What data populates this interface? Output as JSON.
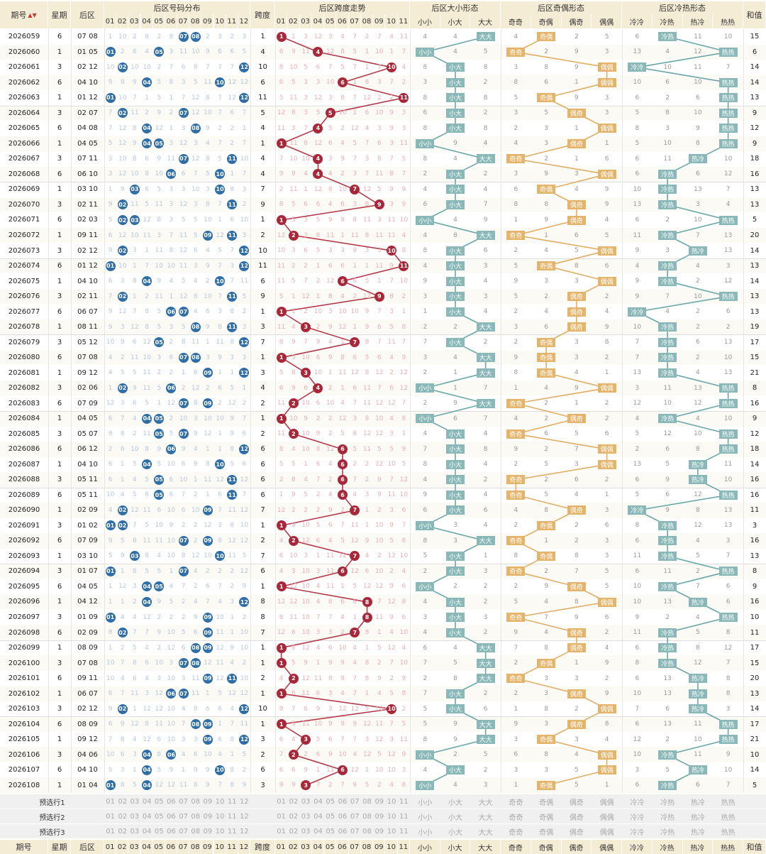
{
  "header": {
    "issue": "期号",
    "week": "星期",
    "back": "后区",
    "dist_group": "后区号码分布",
    "kd": "跨度",
    "kd_group": "后区跨度走势",
    "size_group": "后区大小形态",
    "size_cols": [
      "小小",
      "小大",
      "大大"
    ],
    "parity_group": "后区奇偶形态",
    "parity_cols": [
      "奇奇",
      "奇偶",
      "偶奇",
      "偶偶"
    ],
    "hot_group": "后区冷热形态",
    "hot_cols": [
      "冷冷",
      "冷热",
      "热冷",
      "热热"
    ],
    "sum": "和值"
  },
  "numbers12": [
    "01",
    "02",
    "03",
    "04",
    "05",
    "06",
    "07",
    "08",
    "09",
    "10",
    "11",
    "12"
  ],
  "kd_cols": [
    "0",
    "1",
    "2",
    "3",
    "4",
    "5",
    "6",
    "7",
    "8",
    "9",
    "10",
    "11"
  ],
  "rows": [
    {
      "issue": "2026059",
      "week": "6",
      "back": "07 08",
      "kd": "1",
      "sum": "15",
      "size": "大大",
      "parity": "奇偶",
      "hot": "冷热"
    },
    {
      "issue": "2026060",
      "week": "1",
      "back": "01 05",
      "kd": "4",
      "sum": "6",
      "size": "小小",
      "parity": "奇奇",
      "hot": "热热"
    },
    {
      "issue": "2026061",
      "week": "3",
      "back": "02 12",
      "kd": "10",
      "sum": "14",
      "size": "小大",
      "parity": "偶偶",
      "hot": "冷冷"
    },
    {
      "issue": "2026062",
      "week": "6",
      "back": "04 10",
      "kd": "6",
      "sum": "14",
      "size": "小大",
      "parity": "偶偶",
      "hot": "热热"
    },
    {
      "issue": "2026063",
      "week": "1",
      "back": "01 12",
      "kd": "11",
      "sum": "13",
      "size": "小大",
      "parity": "奇偶",
      "hot": "热热"
    },
    {
      "issue": "2026064",
      "week": "3",
      "back": "02 07",
      "kd": "5",
      "sum": "9",
      "size": "小大",
      "parity": "偶奇",
      "hot": "热热"
    },
    {
      "issue": "2026065",
      "week": "6",
      "back": "04 08",
      "kd": "4",
      "sum": "12",
      "size": "小大",
      "parity": "偶偶",
      "hot": "热热"
    },
    {
      "issue": "2026066",
      "week": "1",
      "back": "04 05",
      "kd": "1",
      "sum": "9",
      "size": "小小",
      "parity": "偶奇",
      "hot": "热热"
    },
    {
      "issue": "2026067",
      "week": "3",
      "back": "07 11",
      "kd": "4",
      "sum": "18",
      "size": "大大",
      "parity": "奇奇",
      "hot": "热冷"
    },
    {
      "issue": "2026068",
      "week": "6",
      "back": "06 10",
      "kd": "4",
      "sum": "16",
      "size": "小大",
      "parity": "偶偶",
      "hot": "冷热"
    },
    {
      "issue": "2026069",
      "week": "1",
      "back": "03 10",
      "kd": "7",
      "sum": "13",
      "size": "小大",
      "parity": "奇偶",
      "hot": "冷热"
    },
    {
      "issue": "2026070",
      "week": "3",
      "back": "02 11",
      "kd": "9",
      "sum": "13",
      "size": "小大",
      "parity": "偶奇",
      "hot": "冷热"
    },
    {
      "issue": "2026071",
      "week": "6",
      "back": "02 03",
      "kd": "1",
      "sum": "5",
      "size": "小小",
      "parity": "偶奇",
      "hot": "热热"
    },
    {
      "issue": "2026072",
      "week": "1",
      "back": "09 11",
      "kd": "2",
      "sum": "20",
      "size": "大大",
      "parity": "奇奇",
      "hot": "冷热"
    },
    {
      "issue": "2026073",
      "week": "3",
      "back": "02 12",
      "kd": "10",
      "sum": "14",
      "size": "小大",
      "parity": "偶偶",
      "hot": "热冷"
    },
    {
      "issue": "2026074",
      "week": "6",
      "back": "01 12",
      "kd": "11",
      "sum": "13",
      "size": "小大",
      "parity": "奇偶",
      "hot": "冷热"
    },
    {
      "issue": "2026075",
      "week": "1",
      "back": "04 10",
      "kd": "6",
      "sum": "14",
      "size": "小大",
      "parity": "偶偶",
      "hot": "冷热"
    },
    {
      "issue": "2026076",
      "week": "3",
      "back": "02 11",
      "kd": "9",
      "sum": "13",
      "size": "小大",
      "parity": "偶奇",
      "hot": "热热"
    },
    {
      "issue": "2026077",
      "week": "6",
      "back": "06 07",
      "kd": "1",
      "sum": "13",
      "size": "小大",
      "parity": "偶奇",
      "hot": "冷冷"
    },
    {
      "issue": "2026078",
      "week": "1",
      "back": "08 11",
      "kd": "3",
      "sum": "19",
      "size": "大大",
      "parity": "偶奇",
      "hot": "冷热"
    },
    {
      "issue": "2026079",
      "week": "3",
      "back": "05 12",
      "kd": "7",
      "sum": "17",
      "size": "小大",
      "parity": "奇偶",
      "hot": "冷热"
    },
    {
      "issue": "2026080",
      "week": "6",
      "back": "07 08",
      "kd": "1",
      "sum": "15",
      "size": "大大",
      "parity": "奇偶",
      "hot": "冷热"
    },
    {
      "issue": "2026081",
      "week": "1",
      "back": "09 12",
      "kd": "3",
      "sum": "21",
      "size": "大大",
      "parity": "奇偶",
      "hot": "冷热"
    },
    {
      "issue": "2026082",
      "week": "3",
      "back": "02 06",
      "kd": "4",
      "sum": "8",
      "size": "小小",
      "parity": "偶偶",
      "hot": "热热"
    },
    {
      "issue": "2026083",
      "week": "6",
      "back": "07 09",
      "kd": "2",
      "sum": "16",
      "size": "大大",
      "parity": "奇奇",
      "hot": "热热"
    },
    {
      "issue": "2026084",
      "week": "1",
      "back": "04 05",
      "kd": "1",
      "sum": "9",
      "size": "小小",
      "parity": "偶奇",
      "hot": "冷热"
    },
    {
      "issue": "2026085",
      "week": "3",
      "back": "05 07",
      "kd": "2",
      "sum": "12",
      "size": "小大",
      "parity": "奇奇",
      "hot": "热热"
    },
    {
      "issue": "2026086",
      "week": "6",
      "back": "06 12",
      "kd": "6",
      "sum": "18",
      "size": "小大",
      "parity": "偶偶",
      "hot": "热热"
    },
    {
      "issue": "2026087",
      "week": "1",
      "back": "04 10",
      "kd": "6",
      "sum": "14",
      "size": "小大",
      "parity": "偶偶",
      "hot": "热冷"
    },
    {
      "issue": "2026088",
      "week": "3",
      "back": "05 11",
      "kd": "6",
      "sum": "16",
      "size": "小大",
      "parity": "奇奇",
      "hot": "热冷"
    },
    {
      "issue": "2026089",
      "week": "6",
      "back": "05 11",
      "kd": "6",
      "sum": "16",
      "size": "小大",
      "parity": "奇奇",
      "hot": "热热"
    },
    {
      "issue": "2026090",
      "week": "1",
      "back": "02 09",
      "kd": "7",
      "sum": "11",
      "size": "小大",
      "parity": "偶奇",
      "hot": "冷冷"
    },
    {
      "issue": "2026091",
      "week": "3",
      "back": "01 02",
      "kd": "1",
      "sum": "3",
      "size": "小小",
      "parity": "奇偶",
      "hot": "冷热"
    },
    {
      "issue": "2026092",
      "week": "6",
      "back": "07 09",
      "kd": "2",
      "sum": "16",
      "size": "大大",
      "parity": "奇奇",
      "hot": "冷热"
    },
    {
      "issue": "2026093",
      "week": "1",
      "back": "03 10",
      "kd": "7",
      "sum": "13",
      "size": "小大",
      "parity": "奇偶",
      "hot": "冷热"
    },
    {
      "issue": "2026094",
      "week": "3",
      "back": "01 07",
      "kd": "6",
      "sum": "8",
      "size": "小大",
      "parity": "奇奇",
      "hot": "热热"
    },
    {
      "issue": "2026095",
      "week": "6",
      "back": "04 05",
      "kd": "1",
      "sum": "9",
      "size": "小小",
      "parity": "偶奇",
      "hot": "冷热"
    },
    {
      "issue": "2026096",
      "week": "1",
      "back": "04 12",
      "kd": "8",
      "sum": "16",
      "size": "小大",
      "parity": "偶偶",
      "hot": "热冷"
    },
    {
      "issue": "2026097",
      "week": "3",
      "back": "01 09",
      "kd": "8",
      "sum": "10",
      "size": "小大",
      "parity": "奇奇",
      "hot": "热热"
    },
    {
      "issue": "2026098",
      "week": "6",
      "back": "02 09",
      "kd": "7",
      "sum": "11",
      "size": "小大",
      "parity": "偶奇",
      "hot": "冷热"
    },
    {
      "issue": "2026099",
      "week": "1",
      "back": "08 09",
      "kd": "1",
      "sum": "17",
      "size": "大大",
      "parity": "偶奇",
      "hot": "冷热"
    },
    {
      "issue": "2026100",
      "week": "3",
      "back": "07 08",
      "kd": "1",
      "sum": "15",
      "size": "大大",
      "parity": "奇偶",
      "hot": "冷热"
    },
    {
      "issue": "2026101",
      "week": "6",
      "back": "09 11",
      "kd": "2",
      "sum": "20",
      "size": "大大",
      "parity": "奇奇",
      "hot": "热冷"
    },
    {
      "issue": "2026102",
      "week": "1",
      "back": "06 07",
      "kd": "1",
      "sum": "13",
      "size": "小大",
      "parity": "偶奇",
      "hot": "热冷"
    },
    {
      "issue": "2026103",
      "week": "3",
      "back": "02 12",
      "kd": "10",
      "sum": "14",
      "size": "小大",
      "parity": "偶偶",
      "hot": "热冷"
    },
    {
      "issue": "2026104",
      "week": "6",
      "back": "08 09",
      "kd": "1",
      "sum": "17",
      "size": "大大",
      "parity": "偶奇",
      "hot": "热热"
    },
    {
      "issue": "2026105",
      "week": "1",
      "back": "09 12",
      "kd": "3",
      "sum": "21",
      "size": "大大",
      "parity": "奇偶",
      "hot": "热热"
    },
    {
      "issue": "2026106",
      "week": "3",
      "back": "04 06",
      "kd": "2",
      "sum": "10",
      "size": "小小",
      "parity": "偶偶",
      "hot": "冷热"
    },
    {
      "issue": "2026107",
      "week": "6",
      "back": "04 10",
      "kd": "6",
      "sum": "14",
      "size": "小大",
      "parity": "偶偶",
      "hot": "热冷"
    },
    {
      "issue": "2026108",
      "week": "1",
      "back": "01 04",
      "kd": "3",
      "sum": "5",
      "size": "小小",
      "parity": "奇偶",
      "hot": "冷热"
    }
  ],
  "footer": {
    "pick1": "预选行1",
    "pick2": "预选行2",
    "pick3": "预选行3"
  },
  "colors": {
    "header_bg": "#f5ecd6",
    "ball": "#2f6ea6",
    "kd_ball": "#a8283a",
    "teal": "#8ab8b8",
    "gold": "#e4b46b",
    "line_teal": "#6aa7a7",
    "line_gold": "#e0ae66"
  }
}
